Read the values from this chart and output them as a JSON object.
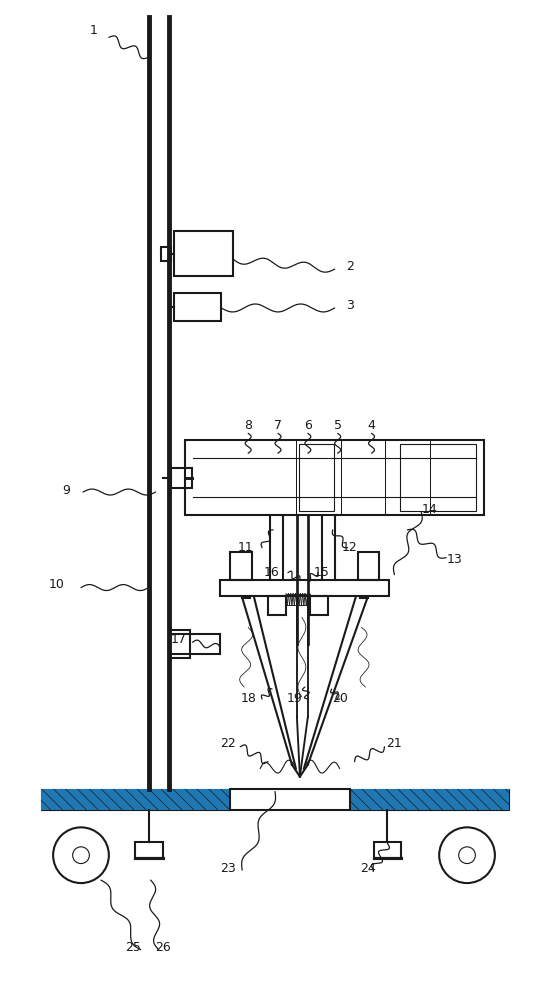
{
  "bg_color": "#ffffff",
  "line_color": "#1a1a1a",
  "line_width": 1.5,
  "thin_lw": 0.8,
  "label_fontsize": 9
}
